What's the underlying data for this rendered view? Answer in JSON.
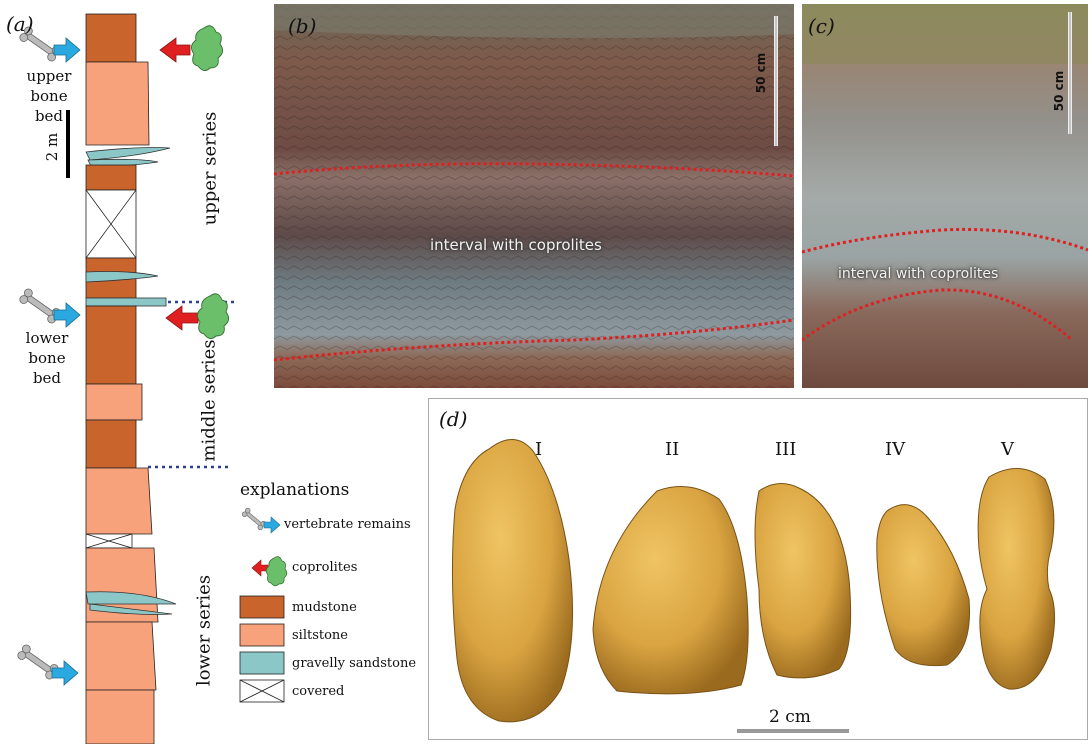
{
  "colors": {
    "mudstone": "#c8642c",
    "siltstone": "#f8a27c",
    "sandstone": "#8cc7c8",
    "arrow_blue": "#2aa8e0",
    "arrow_red": "#e02020",
    "coprolite_green": "#6cbf6a",
    "dotted_line": "#2b3f94",
    "photo_dotted": "#e02020",
    "specimen": "#d9a441"
  },
  "panel_a": {
    "letter": "(a)",
    "scale_label": "2 m",
    "upper_bone_bed": [
      "upper",
      "bone",
      "bed"
    ],
    "lower_bone_bed": [
      "lower",
      "bone",
      "bed"
    ],
    "series": {
      "upper": "upper series",
      "middle": "middle series",
      "lower": "lower series"
    },
    "legend": {
      "title": "explanations",
      "items": {
        "vertebrate": "vertebrate remains",
        "coprolites": "coprolites",
        "mudstone": "mudstone",
        "siltstone": "siltstone",
        "sandstone": "gravelly sandstone",
        "covered": "covered"
      }
    }
  },
  "panel_b": {
    "letter": "(b)",
    "scale_label": "50 cm",
    "annotation": "interval with coprolites"
  },
  "panel_c": {
    "letter": "(c)",
    "scale_label": "50 cm",
    "annotation": "interval with coprolites"
  },
  "panel_d": {
    "letter": "(d)",
    "specimens": [
      "I",
      "II",
      "III",
      "IV",
      "V"
    ],
    "scale_label": "2 cm"
  }
}
